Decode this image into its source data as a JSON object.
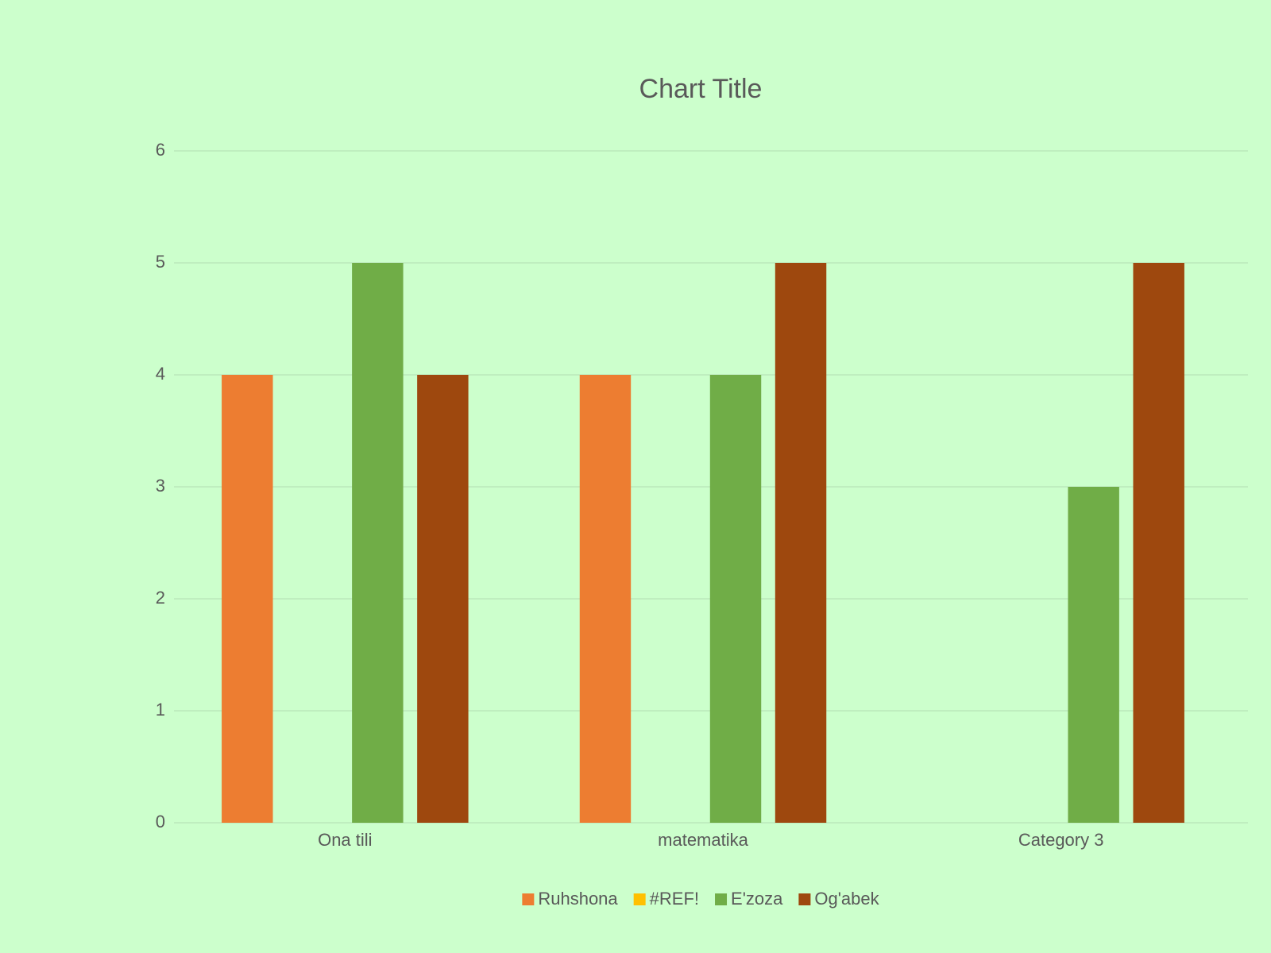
{
  "chart_data": {
    "type": "bar",
    "title": "Chart Title",
    "categories": [
      "Ona tili",
      "matematika",
      "Category 3"
    ],
    "series": [
      {
        "name": "Ruhshona",
        "color": "#ED7D31",
        "values": [
          4,
          4,
          null
        ]
      },
      {
        "name": "#REF!",
        "color": "#FFC000",
        "values": [
          null,
          null,
          null
        ]
      },
      {
        "name": "E'zoza",
        "color": "#70AD47",
        "values": [
          5,
          4,
          3
        ]
      },
      {
        "name": "Og'abek",
        "color": "#9E480E",
        "values": [
          4,
          5,
          5
        ]
      }
    ],
    "ylim": [
      0,
      6
    ],
    "yticks": [
      0,
      1,
      2,
      3,
      4,
      5,
      6
    ],
    "grid": true,
    "legend": "bottom"
  }
}
